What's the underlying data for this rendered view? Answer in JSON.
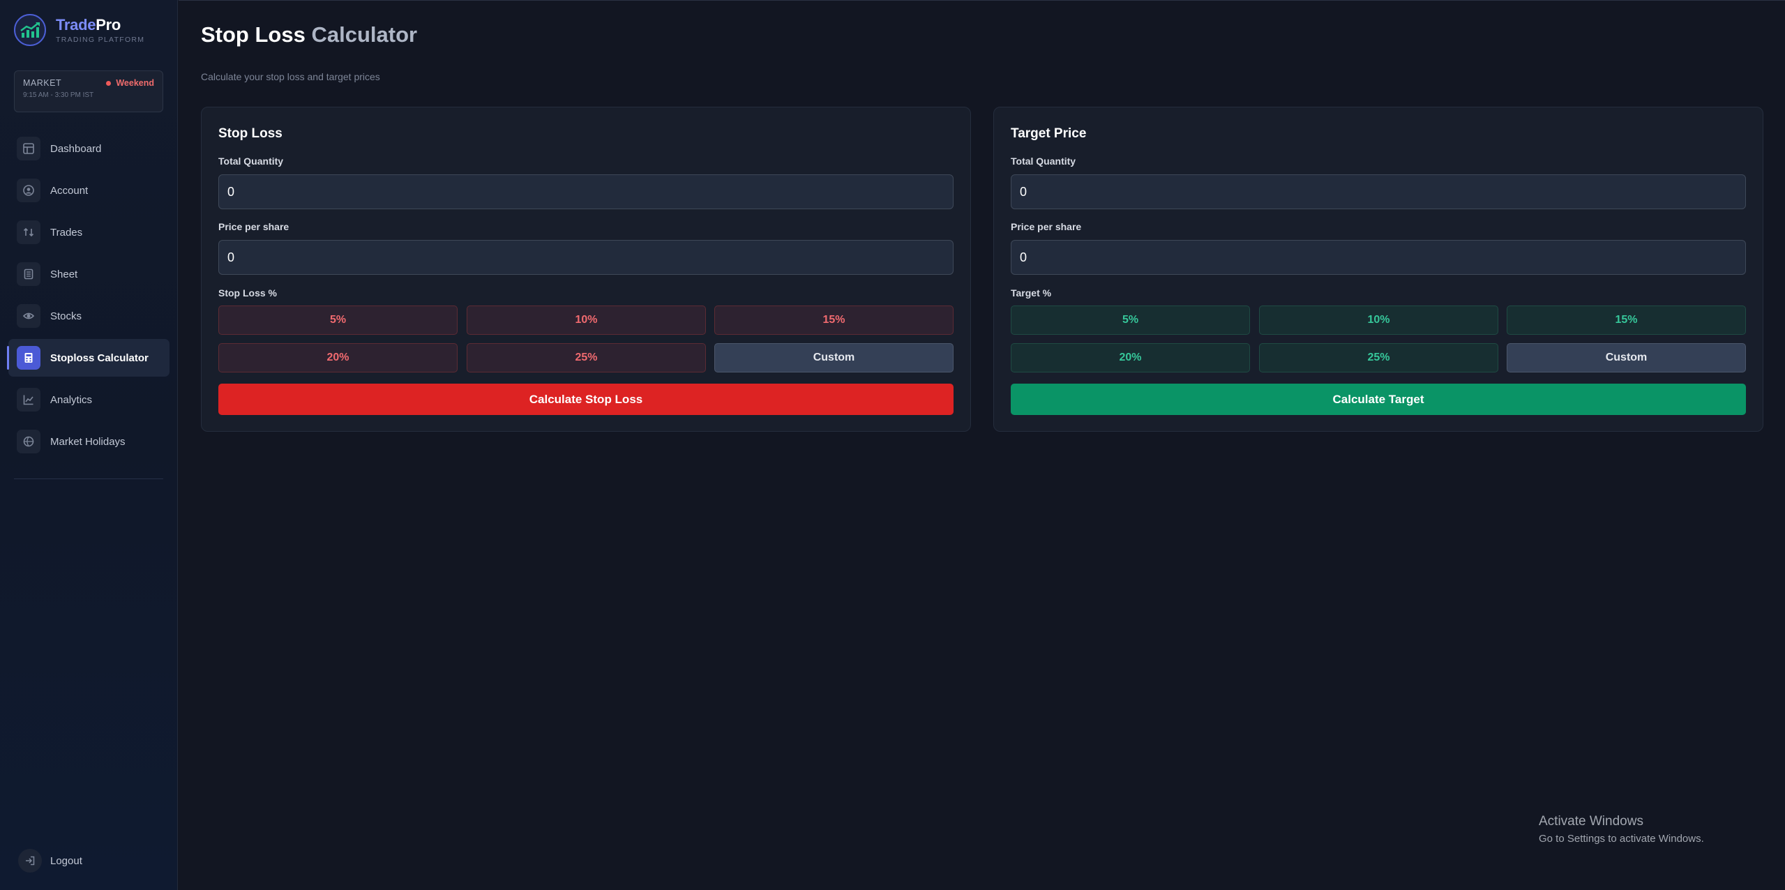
{
  "brand": {
    "name_part1": "Trade",
    "name_part2": "Pro",
    "subtitle": "TRADING PLATFORM"
  },
  "market": {
    "label": "MARKET",
    "status": "Weekend",
    "hours": "9:15 AM - 3:30 PM IST",
    "status_color": "#ef5a5a"
  },
  "sidebar": {
    "items": [
      {
        "label": "Dashboard",
        "icon": "dashboard-icon"
      },
      {
        "label": "Account",
        "icon": "account-icon"
      },
      {
        "label": "Trades",
        "icon": "trades-icon"
      },
      {
        "label": "Sheet",
        "icon": "sheet-icon"
      },
      {
        "label": "Stocks",
        "icon": "stocks-icon"
      },
      {
        "label": "Stoploss Calculator",
        "icon": "calculator-icon",
        "active": true
      },
      {
        "label": "Analytics",
        "icon": "analytics-icon"
      },
      {
        "label": "Market Holidays",
        "icon": "holidays-icon"
      }
    ],
    "logout_label": "Logout"
  },
  "page": {
    "title_part1": "Stop Loss",
    "title_part2": "Calculator",
    "subtitle": "Calculate your stop loss and target prices"
  },
  "stop_loss": {
    "title": "Stop Loss",
    "quantity_label": "Total Quantity",
    "quantity_value": "0",
    "price_label": "Price per share",
    "price_value": "0",
    "percent_label": "Stop Loss %",
    "options": [
      "5%",
      "10%",
      "15%",
      "20%",
      "25%"
    ],
    "custom_label": "Custom",
    "action_label": "Calculate Stop Loss",
    "accent": "#dd2323"
  },
  "target": {
    "title": "Target Price",
    "quantity_label": "Total Quantity",
    "quantity_value": "0",
    "price_label": "Price per share",
    "price_value": "0",
    "percent_label": "Target %",
    "options": [
      "5%",
      "10%",
      "15%",
      "20%",
      "25%"
    ],
    "custom_label": "Custom",
    "action_label": "Calculate Target",
    "accent": "#0a9466"
  },
  "watermark": {
    "line1": "Activate Windows",
    "line2": "Go to Settings to activate Windows."
  }
}
